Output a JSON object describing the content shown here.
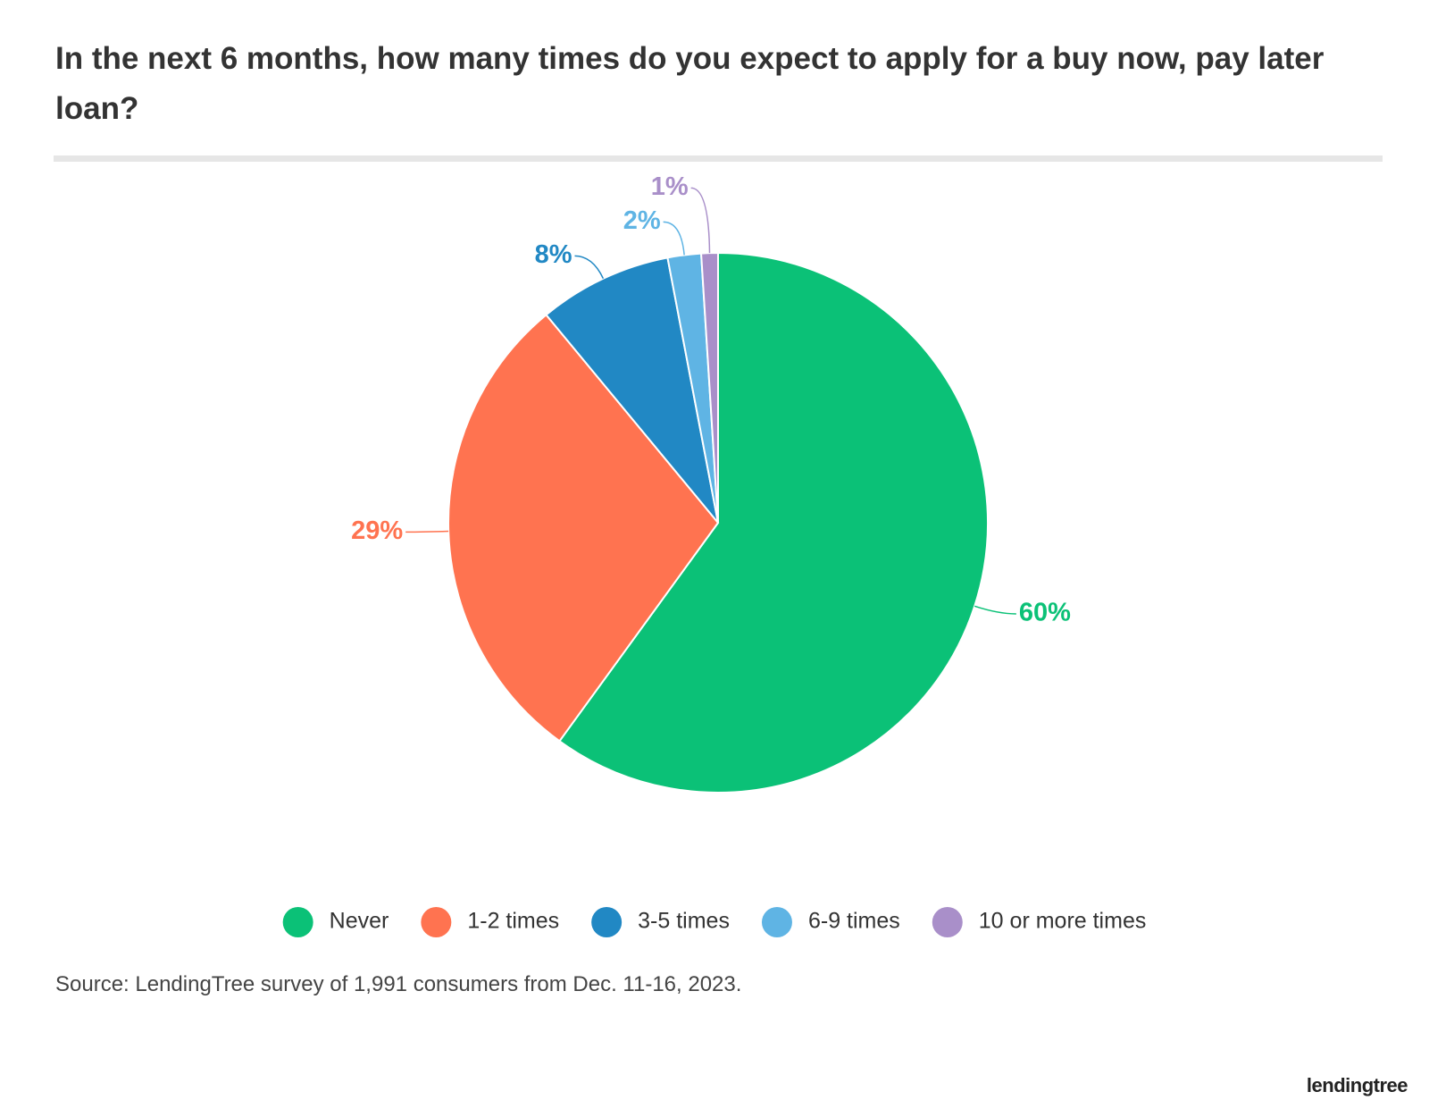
{
  "chart_data": {
    "type": "pie",
    "title": "In the next 6 months, how many times do you expect to apply for a buy now, pay later loan?",
    "categories": [
      "Never",
      "1-2 times",
      "3-5 times",
      "6-9 times",
      "10 or more times"
    ],
    "values": [
      60,
      29,
      8,
      2,
      1
    ],
    "value_labels": [
      "60%",
      "29%",
      "8%",
      "2%",
      "1%"
    ],
    "colors": [
      "#0bc177",
      "#ff7350",
      "#2188c4",
      "#5fb4e4",
      "#a98fc9"
    ],
    "legend": "bottom",
    "source": "Source: LendingTree survey of 1,991 consumers from Dec. 11-16, 2023.",
    "brand": "lendingtree"
  }
}
